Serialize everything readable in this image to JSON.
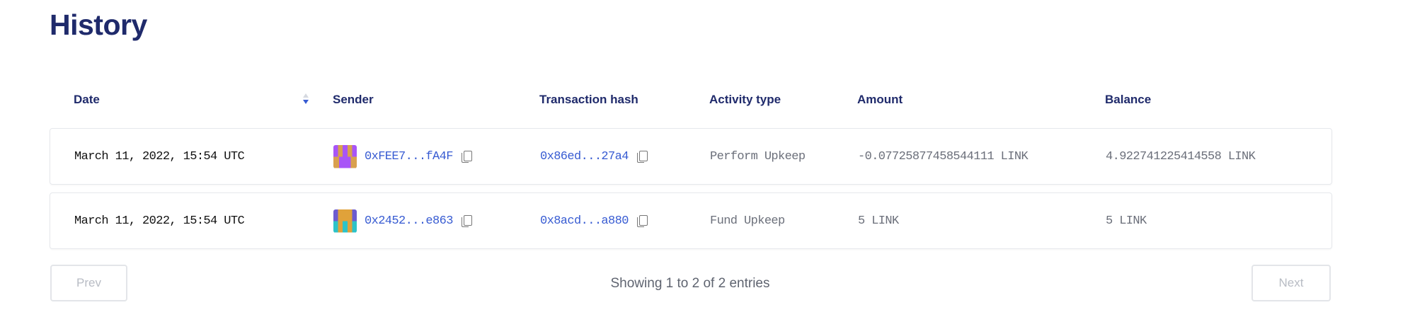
{
  "page": {
    "title": "History"
  },
  "table": {
    "columns": [
      "Date",
      "Sender",
      "Transaction hash",
      "Activity type",
      "Amount",
      "Balance"
    ],
    "sort": {
      "column": "Date",
      "direction": "descending"
    },
    "rows": [
      {
        "date": "March 11, 2022, 15:54 UTC",
        "sender": "0xFEE7...fA4F",
        "tx_hash": "0x86ed...27a4",
        "activity": "Perform Upkeep",
        "amount": "-0.07725877458544111 LINK",
        "balance": "4.922741225414558 LINK"
      },
      {
        "date": "March 11, 2022, 15:54 UTC",
        "sender": "0x2452...e863",
        "tx_hash": "0x8acd...a880",
        "activity": "Fund Upkeep",
        "amount": "5 LINK",
        "balance": "5 LINK"
      }
    ]
  },
  "pagination": {
    "prev": "Prev",
    "next": "Next",
    "status": "Showing 1 to 2 of 2 entries"
  },
  "colors": {
    "heading": "#1f2a6b",
    "link": "#375bd2",
    "muted": "#6b6f7a"
  }
}
